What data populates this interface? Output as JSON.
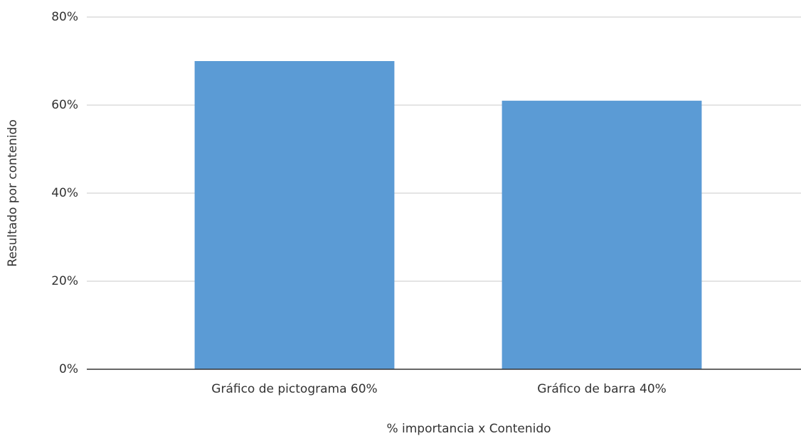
{
  "chart_data": {
    "type": "bar",
    "categories": [
      "Gráfico de pictograma 60%",
      "Gráfico de barra 40%"
    ],
    "values": [
      70,
      61
    ],
    "color": "#5b9bd5",
    "x_label": "% importancia x Contenido",
    "y_label": "Resultado por contenido",
    "ylim": [
      0,
      80
    ],
    "yticks": [
      {
        "value": 0,
        "label": "0%"
      },
      {
        "value": 20,
        "label": "20%"
      },
      {
        "value": 40,
        "label": "40%"
      },
      {
        "value": 60,
        "label": "60%"
      },
      {
        "value": 80,
        "label": "80%"
      }
    ],
    "grid": true
  }
}
